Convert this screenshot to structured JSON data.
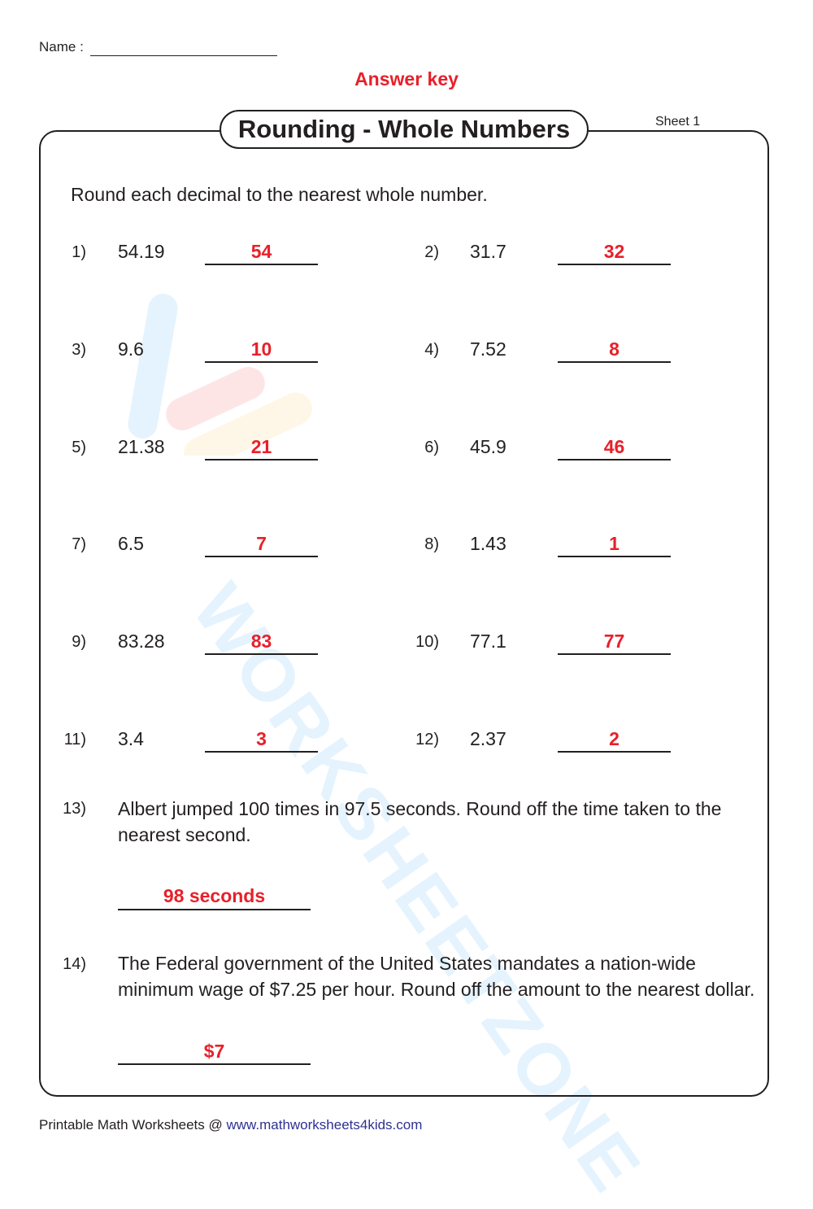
{
  "header": {
    "name_label": "Name :",
    "answer_key": "Answer key",
    "title": "Rounding - Whole Numbers",
    "sheet": "Sheet 1"
  },
  "instructions": "Round each decimal to the nearest whole number.",
  "problems": [
    {
      "num": "1)",
      "value": "54.19",
      "answer": "54"
    },
    {
      "num": "2)",
      "value": "31.7",
      "answer": "32"
    },
    {
      "num": "3)",
      "value": "9.6",
      "answer": "10"
    },
    {
      "num": "4)",
      "value": "7.52",
      "answer": "8"
    },
    {
      "num": "5)",
      "value": "21.38",
      "answer": "21"
    },
    {
      "num": "6)",
      "value": "45.9",
      "answer": "46"
    },
    {
      "num": "7)",
      "value": "6.5",
      "answer": "7"
    },
    {
      "num": "8)",
      "value": "1.43",
      "answer": "1"
    },
    {
      "num": "9)",
      "value": "83.28",
      "answer": "83"
    },
    {
      "num": "10)",
      "value": "77.1",
      "answer": "77"
    },
    {
      "num": "11)",
      "value": "3.4",
      "answer": "3"
    },
    {
      "num": "12)",
      "value": "2.37",
      "answer": "2"
    }
  ],
  "word_problems": [
    {
      "num": "13)",
      "text": "Albert jumped 100 times in 97.5 seconds. Round off the time taken to the nearest second.",
      "answer": "98 seconds"
    },
    {
      "num": "14)",
      "text": "The Federal government of the United States mandates a nation-wide minimum wage of $7.25 per hour. Round off the amount to the nearest dollar.",
      "answer": "$7"
    }
  ],
  "watermark": "WORKSHEETZONE",
  "footer": {
    "label": "Printable Math Worksheets @ ",
    "link": "www.mathworksheets4kids.com"
  },
  "colors": {
    "answer": "#e8202a",
    "link": "#2e3192",
    "text": "#231f20"
  }
}
